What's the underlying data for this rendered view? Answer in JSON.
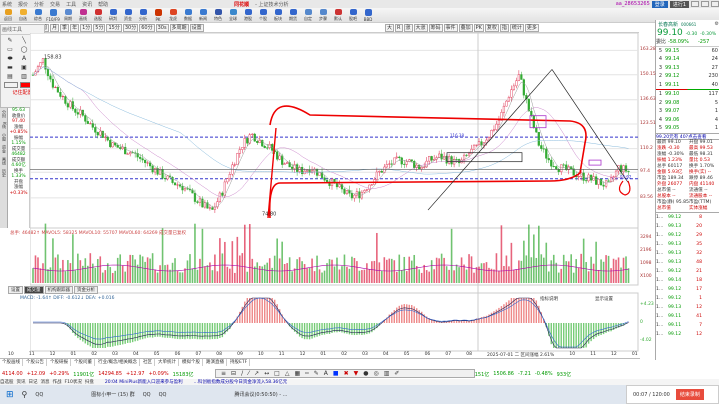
{
  "menubar": {
    "items": [
      "系统",
      "报价",
      "分析",
      "交易",
      "工具",
      "资讯",
      "帮助"
    ],
    "brand": "同花顺",
    "title": "- 上证技术分析",
    "user": "aa_28653265",
    "btn1": "登录",
    "btn2": "进行1"
  },
  "toolbar": {
    "items": [
      "返回",
      "自选",
      "综合",
      "F10/F9",
      "周期",
      "画线",
      "选股",
      "研判",
      "资金",
      "分析",
      "PK",
      "龙虎",
      "数据",
      "新闻",
      "特色",
      "全球",
      "港股",
      "个股",
      "板块",
      "期货",
      "自定",
      "步骤",
      "默认",
      "股吧",
      "BBD"
    ]
  },
  "period": {
    "items": [
      "日",
      "周",
      "月",
      "季",
      "年",
      "1分",
      "5分",
      "15分",
      "30分",
      "60分",
      "30s",
      "多周期",
      "设置"
    ],
    "active": "日",
    "right": [
      "大",
      "R",
      "涨",
      "大涨",
      "筹码",
      "事件",
      "叠加",
      "PK",
      "复权",
      "指",
      "统计",
      "更多"
    ]
  },
  "tools": {
    "title": "画线工具",
    "icons": [
      "pencil-icon",
      "line-icon",
      "ray-icon",
      "rect-icon",
      "ellipse-icon",
      "filled-rect-icon",
      "filled-ellipse-icon",
      "text-icon",
      "arrow-icon",
      "bar-icon",
      "screen-icon",
      "zoom-icon",
      "save-icon",
      "folder-icon",
      "diamond-icon"
    ],
    "footer": "记住配置",
    "color": "#ff0000"
  },
  "vtabs": [
    "分时",
    "K线",
    "小窗",
    "资金",
    "画线",
    "历史"
  ],
  "info": [
    {
      "k": "95.63",
      "c": "g"
    },
    {
      "k": "收盘价",
      "c": ""
    },
    {
      "k": "97.40",
      "c": "v"
    },
    {
      "k": "涨幅",
      "c": ""
    },
    {
      "k": "+0.85%",
      "c": "v"
    },
    {
      "k": "振幅",
      "c": ""
    },
    {
      "k": "1.15%",
      "c": "g"
    },
    {
      "k": "成交量",
      "c": ""
    },
    {
      "k": "46482",
      "c": "g"
    },
    {
      "k": "成交额",
      "c": ""
    },
    {
      "k": "4.60亿",
      "c": "g"
    },
    {
      "k": "换手",
      "c": ""
    },
    {
      "k": "1.33%",
      "c": "g"
    },
    {
      "k": "开盘",
      "c": ""
    },
    {
      "k": "涨幅",
      "c": ""
    },
    {
      "k": "+0.33%",
      "c": "v"
    }
  ],
  "chart_data": {
    "type": "candlestick",
    "y_ticks": [
      163.28,
      150.15,
      136.63,
      123.51,
      110.2,
      97.4,
      83.56
    ],
    "high_label": "158.83",
    "low_label": "74.80",
    "ref_lines": [
      {
        "label": "116.38",
        "value": 116.4
      },
      {
        "label": "93.92",
        "value": 93.9
      }
    ],
    "closes": [
      150,
      158,
      145,
      138,
      132,
      128,
      122,
      118,
      112,
      110,
      108,
      104,
      100,
      96,
      92,
      90,
      85,
      80,
      76,
      86,
      100,
      112,
      118,
      114,
      110,
      104,
      100,
      98,
      100,
      96,
      92,
      88,
      84,
      86,
      92,
      98,
      102,
      104,
      103,
      100,
      104,
      106,
      104,
      102,
      108,
      112,
      118,
      126,
      140,
      150,
      130,
      112,
      104,
      100,
      98,
      96,
      94,
      92,
      90,
      100,
      98
    ],
    "date_marker": "2025-07-01"
  },
  "volume": {
    "header": "总手: 46482↑  MAVOL5: 58325   MAVOL10: 55707   MAVOL60: 64269   成交量已复权",
    "ticks": [
      "3294",
      "2196",
      "1098",
      "X100"
    ]
  },
  "subtabs": [
    "设置",
    "成交量",
    "机构跟踪器",
    "资金分析"
  ],
  "macd": {
    "header": "MACD: -1.64↑  DIFF: -0.612↓  DEA: +0.016",
    "ticks": [
      "+4.23",
      "0",
      "-4.02"
    ],
    "labels": [
      "指标说明",
      "显示设置"
    ]
  },
  "xaxis": [
    "10",
    "11",
    "12",
    "01",
    "02",
    "03",
    "04",
    "05",
    "06",
    "07",
    "08",
    "09",
    "10",
    "11",
    "12",
    "01",
    "02",
    "03",
    "04",
    "05",
    "06",
    "07",
    "08",
    "2025-07-01 二 区间涨幅 2.61%",
    "10",
    "11",
    "12",
    "01"
  ],
  "bottom_tabs": [
    "个股画线",
    "个股公告",
    "个股研报",
    "个股问董",
    "行业/概念/相关概念",
    "社区",
    "大单统计",
    "模拟个股",
    "路演直播",
    "持股ETF"
  ],
  "status": [
    {
      "t": "4114.00",
      "c": "r"
    },
    {
      "t": "+12.09",
      "c": "r"
    },
    {
      "t": "+0.29%",
      "c": "r"
    },
    {
      "t": "11901亿",
      "c": "g"
    },
    {
      "t": "14294.85",
      "c": "r"
    },
    {
      "t": "+12.97",
      "c": "r"
    },
    {
      "t": "+0.09%",
      "c": "r"
    },
    {
      "t": "15183亿",
      "c": "g"
    },
    {
      "t": "7151亿",
      "c": "g"
    },
    {
      "t": "1506.86",
      "c": "g"
    },
    {
      "t": "-7.21",
      "c": "g"
    },
    {
      "t": "-0.48%",
      "c": "g"
    },
    {
      "t": "933亿",
      "c": "g"
    }
  ],
  "ticker": [
    "自选股",
    "资讯",
    "日记",
    "消息",
    "作战",
    "F10状况",
    "扫盘",
    "20:04 MiniPlus新能入口迎来参与盈利",
    "...科创板指数成分股今日资金净流入58.36亿元"
  ],
  "drawbar": [
    "≡",
    "⊟",
    "/",
    "⁄",
    "↗",
    "↔",
    "□",
    "△",
    "▦",
    "┅",
    "✎",
    "A",
    "■",
    "✖",
    "▼",
    "●",
    "◎",
    "▥",
    "✐"
  ],
  "taskbar": {
    "apps": [
      "QQ",
      "图标小甲一 (15) 群",
      "QQ",
      "QQ",
      "腾讯会议(0:50:50) - ..."
    ]
  },
  "recorder": {
    "time": "00:07 / 120:00",
    "stop": "结束录制"
  },
  "quote": {
    "name": "长春高新",
    "code": "000661",
    "price": "99.10",
    "chg": "-0.30",
    "pct": "-0.30%",
    "wb_label": "委比",
    "wb": "-58.09%",
    "wc": "-257",
    "sell": [
      {
        "n": "5",
        "p": "99.15",
        "v": "60"
      },
      {
        "n": "4",
        "p": "99.14",
        "v": "24"
      },
      {
        "n": "3",
        "p": "99.13",
        "v": "27"
      },
      {
        "n": "2",
        "p": "99.12",
        "v": "230"
      },
      {
        "n": "1",
        "p": "99.11",
        "v": "40"
      }
    ],
    "buy": [
      {
        "n": "1",
        "p": "99.10",
        "v": "117"
      },
      {
        "n": "2",
        "p": "99.08",
        "v": "5"
      },
      {
        "n": "3",
        "p": "99.07",
        "v": "1"
      },
      {
        "n": "4",
        "p": "99.06",
        "v": "4"
      },
      {
        "n": "5",
        "p": "99.05",
        "v": "1"
      }
    ],
    "sell_label": "卖盘",
    "buy_label": "买盘",
    "note": "99.20元有 40?点击查看",
    "stats": [
      "最新 99.10",
      "开盘 99.01",
      "涨跌 -0.30",
      "最高 99.53",
      "涨幅 -0.30%",
      "最低 98.31",
      "振幅 1.23%",
      "量比 0.53",
      "总手 60117",
      "换手 1.70%",
      "金额 5.93亿",
      "换手(实) --",
      "市盈 189.34",
      "跌停 89.46",
      "外盘 26077",
      "内盘 41140",
      "总市值 --",
      "流通值 --",
      "总股本 --",
      "流通股本 --",
      "市盈(静) 95.85",
      "市盈(TTM)",
      "总市值",
      "实体涨幅"
    ],
    "ticks": [
      {
        "p": "99.12",
        "q": "8"
      },
      {
        "p": "99.13",
        "q": "20"
      },
      {
        "p": "99.12",
        "q": "29"
      },
      {
        "p": "99.13",
        "q": "35"
      },
      {
        "p": "99.13",
        "q": "32"
      },
      {
        "p": "99.13",
        "q": "48"
      },
      {
        "p": "99.12",
        "q": "21"
      },
      {
        "p": "99.14",
        "q": "18"
      },
      {
        "p": "99.12",
        "q": "17"
      },
      {
        "p": "99.12",
        "q": "1"
      },
      {
        "p": "99.13",
        "q": "12"
      },
      {
        "p": "99.11",
        "q": "41"
      },
      {
        "p": "99.11",
        "q": "7"
      },
      {
        "p": "99.12",
        "q": "12"
      }
    ]
  }
}
